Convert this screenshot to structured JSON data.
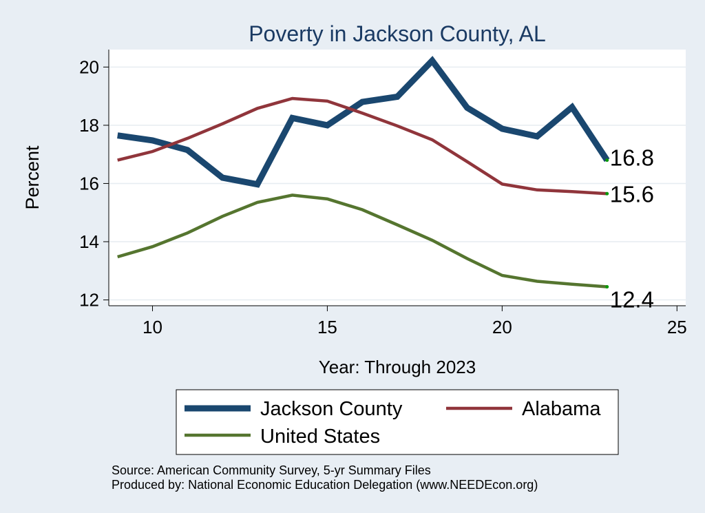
{
  "chart_data": {
    "type": "line",
    "title": "Poverty in Jackson County, AL",
    "xlabel": "Year: Through 2023",
    "ylabel": "Percent",
    "xlim": [
      8.75,
      25.25
    ],
    "ylim": [
      11.8,
      20.6
    ],
    "xticks": [
      10,
      15,
      20,
      25
    ],
    "yticks": [
      12,
      14,
      16,
      18,
      20
    ],
    "grid": true,
    "x": [
      9,
      10,
      11,
      12,
      13,
      14,
      15,
      16,
      17,
      18,
      19,
      20,
      21,
      22,
      23
    ],
    "series": [
      {
        "name": "Jackson County",
        "color": "#1a476f",
        "values": [
          17.65,
          17.48,
          17.15,
          16.2,
          15.97,
          18.25,
          18.0,
          18.8,
          18.98,
          20.22,
          18.6,
          17.88,
          17.62,
          18.62,
          16.8
        ],
        "end_label": "16.8"
      },
      {
        "name": "Alabama",
        "color": "#90353b",
        "values": [
          16.8,
          17.1,
          17.55,
          18.05,
          18.58,
          18.92,
          18.83,
          18.42,
          17.98,
          17.5,
          16.75,
          15.98,
          15.78,
          15.72,
          15.65
        ],
        "end_label": "15.6"
      },
      {
        "name": "United States",
        "color": "#55752f",
        "values": [
          13.48,
          13.83,
          14.3,
          14.87,
          15.35,
          15.6,
          15.47,
          15.1,
          14.58,
          14.05,
          13.42,
          12.84,
          12.64,
          12.54,
          12.45
        ],
        "end_label": "12.4"
      }
    ],
    "legend": {
      "placement": "bottom"
    }
  },
  "source_note": "Source: American Community Survey, 5-yr Summary Files",
  "producer_note": "Produced by: National Economic Education Delegation (www.NEEDEcon.org)"
}
